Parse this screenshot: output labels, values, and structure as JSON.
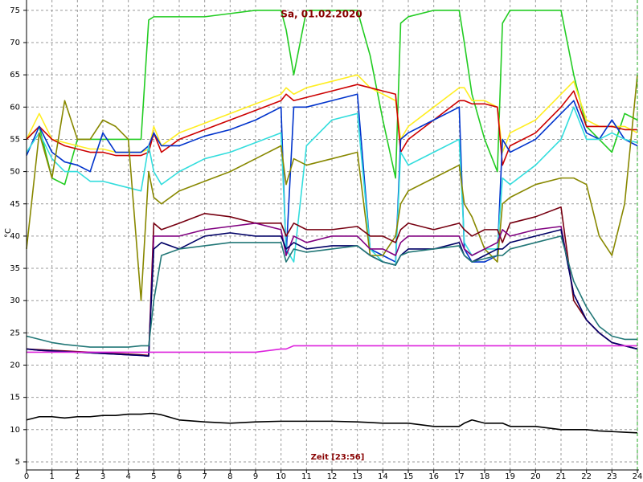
{
  "chart_data": {
    "type": "line",
    "title": "Sa, 01.02.2020",
    "x_label": "Zeit [23:56]",
    "y_label": "°C",
    "xlim": [
      0,
      24
    ],
    "ylim": [
      3.75,
      76.6
    ],
    "xticks": [
      0,
      1,
      2,
      3,
      4,
      5,
      6,
      7,
      8,
      9,
      10,
      11,
      12,
      13,
      14,
      15,
      16,
      17,
      18,
      19,
      20,
      21,
      22,
      23,
      24
    ],
    "yticks": [
      5,
      10,
      15,
      20,
      25,
      30,
      35,
      40,
      45,
      50,
      55,
      60,
      65,
      70,
      75
    ],
    "grid": true,
    "x": [
      0,
      0.5,
      1,
      1.5,
      2,
      2.5,
      3,
      3.5,
      4,
      4.5,
      4.8,
      5,
      5.3,
      6,
      7,
      8,
      9,
      10,
      10.2,
      10.5,
      11,
      12,
      13,
      13.5,
      14,
      14.5,
      14.7,
      15,
      16,
      17,
      17.2,
      17.5,
      18,
      18.5,
      18.7,
      19,
      20,
      21,
      21.5,
      22,
      22.5,
      23,
      23.5,
      24
    ],
    "series": [
      {
        "color": "#22cc22",
        "values": [
          55,
          57,
          49,
          48,
          55,
          55,
          55,
          55,
          55,
          55,
          73.5,
          74,
          74,
          74,
          74,
          74.5,
          75,
          75,
          72,
          65,
          75,
          75,
          75,
          68,
          58,
          49,
          73,
          74,
          75,
          75,
          70,
          62,
          55,
          50,
          73,
          75,
          75,
          75,
          65,
          57,
          55,
          53,
          59,
          58
        ]
      },
      {
        "color": "#ffee22",
        "values": [
          55,
          59,
          55,
          54.5,
          54,
          53.5,
          53.5,
          53,
          53,
          53,
          53.5,
          57,
          54,
          56,
          57.5,
          59,
          60.5,
          62,
          63,
          62,
          63,
          64,
          65,
          63,
          62,
          61,
          55,
          57,
          60,
          63,
          63,
          61,
          61,
          60,
          53,
          56,
          58,
          62,
          64,
          58,
          57,
          57,
          57,
          56
        ]
      },
      {
        "color": "#cc0000",
        "values": [
          55,
          57,
          55,
          54,
          53.5,
          53,
          53,
          52.5,
          52.5,
          52.5,
          53,
          56,
          53,
          55,
          56.5,
          58,
          59.5,
          61,
          62,
          61,
          61.5,
          62.5,
          63.5,
          63,
          62.5,
          62,
          53,
          55,
          58,
          61,
          61,
          60.5,
          60.5,
          60,
          51,
          54,
          56,
          60,
          62.5,
          57,
          57,
          57,
          56.5,
          56.5
        ]
      },
      {
        "color": "#0033cc",
        "values": [
          52.5,
          57,
          53,
          51.5,
          51,
          50,
          56,
          53,
          53,
          53,
          54,
          56,
          54,
          54,
          55.5,
          56.5,
          58,
          60,
          37,
          60,
          60,
          61,
          62,
          38,
          37,
          36,
          55,
          56,
          58,
          60,
          38,
          36,
          36,
          37,
          55,
          53,
          55,
          59,
          61,
          56,
          55,
          58,
          55,
          54
        ]
      },
      {
        "color": "#33dddd",
        "values": [
          53,
          56,
          52,
          50,
          50,
          48.5,
          48.5,
          48,
          47.5,
          47,
          54,
          50,
          48,
          50,
          52,
          53,
          54.5,
          56,
          38,
          36,
          54,
          58,
          59,
          38,
          36,
          35.5,
          53,
          51,
          53,
          55,
          39,
          37,
          38,
          38,
          49,
          48,
          51,
          55,
          60,
          55,
          55,
          56,
          55,
          54.5
        ]
      },
      {
        "color": "#888800",
        "values": [
          38,
          56,
          49,
          61,
          55,
          55,
          58,
          57,
          55,
          30,
          50,
          46,
          45,
          47,
          48.5,
          50,
          52,
          54,
          48,
          52,
          51,
          52,
          53,
          37,
          37,
          40,
          45,
          47,
          49,
          51,
          45,
          43,
          38,
          36,
          45,
          46,
          48,
          49,
          49,
          48,
          40,
          37,
          45,
          65
        ]
      },
      {
        "color": "#770011",
        "values": [
          22.5,
          22.4,
          22.3,
          22.2,
          22.1,
          22,
          21.9,
          21.8,
          21.7,
          21.6,
          21.5,
          42,
          41,
          42,
          43.5,
          43,
          42,
          42,
          40,
          42,
          41,
          41,
          41.5,
          40,
          40,
          39,
          41,
          42,
          41,
          42,
          41,
          40,
          41,
          41,
          39,
          42,
          43,
          44.5,
          30,
          27,
          25,
          23.5,
          23,
          22.5
        ]
      },
      {
        "color": "#800080",
        "values": [
          22.5,
          22.3,
          22.2,
          22.1,
          22,
          21.9,
          21.8,
          21.7,
          21.6,
          21.5,
          21.4,
          40,
          40,
          40,
          41,
          41.5,
          42,
          41,
          37,
          40,
          39,
          40,
          40,
          38,
          38,
          37,
          39,
          40,
          40,
          40,
          38,
          37,
          38,
          39,
          41,
          40,
          41,
          41.5,
          31,
          27,
          25,
          23.5,
          23,
          22.5
        ]
      },
      {
        "color": "#000066",
        "values": [
          22.5,
          22.3,
          22.2,
          22.1,
          22,
          21.9,
          21.8,
          21.7,
          21.6,
          21.5,
          21.4,
          38,
          39,
          38,
          40,
          40.5,
          40,
          40,
          38,
          39,
          38,
          38.5,
          38.5,
          37,
          36,
          35.5,
          37,
          38,
          38,
          39,
          37,
          36,
          37,
          38,
          38,
          39,
          40,
          41,
          31,
          27,
          25,
          23.5,
          23,
          22.5
        ]
      },
      {
        "color": "#227777",
        "values": [
          24.5,
          24,
          23.5,
          23.2,
          23,
          22.8,
          22.8,
          22.8,
          22.8,
          23,
          23,
          30,
          37,
          38,
          38.5,
          39,
          39,
          39,
          36,
          38,
          37.5,
          38,
          38.5,
          37,
          36,
          35.5,
          37,
          37.5,
          38,
          38.5,
          37,
          36,
          36.5,
          37,
          37,
          38,
          39,
          40,
          33,
          29,
          26,
          24.5,
          24,
          24
        ]
      },
      {
        "color": "#dd22dd",
        "values": [
          22,
          22,
          22,
          22,
          22,
          22,
          22,
          22,
          22,
          22,
          22,
          22,
          22,
          22,
          22,
          22,
          22,
          22.5,
          22.5,
          23,
          23,
          23,
          23,
          23,
          23,
          23,
          23,
          23,
          23,
          23,
          23,
          23,
          23,
          23,
          23,
          23,
          23,
          23,
          23,
          23,
          23,
          23,
          23,
          23
        ]
      },
      {
        "color": "#000000",
        "values": [
          11.5,
          12,
          12,
          11.8,
          12,
          12,
          12.2,
          12.2,
          12.4,
          12.4,
          12.5,
          12.5,
          12.3,
          11.5,
          11.2,
          11,
          11.2,
          11.3,
          11.3,
          11.3,
          11.3,
          11.3,
          11.2,
          11.1,
          11,
          11,
          11,
          11,
          10.5,
          10.5,
          11,
          11.5,
          11,
          11,
          11,
          10.5,
          10.5,
          10,
          10,
          10,
          9.8,
          9.7,
          9.6,
          9.5
        ]
      }
    ]
  }
}
